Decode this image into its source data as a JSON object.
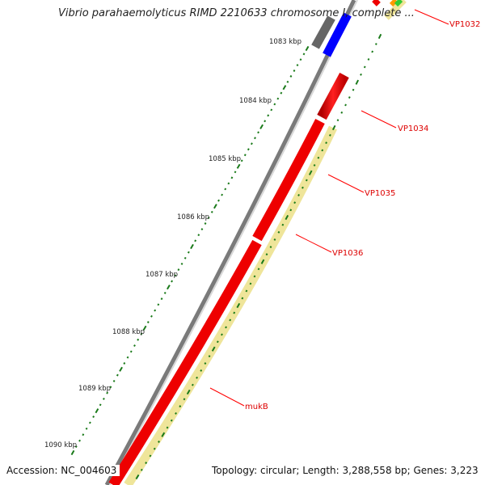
{
  "title": "Vibrio parahaemolyticus RIMD 2210633 chromosome I, complete ...",
  "accession": "Accession: NC_004603",
  "topology": "Topology: circular; Length: 3,288,558 bp; Genes: 3,223",
  "scale_labels": [
    "1083 kbp",
    "1084 kbp",
    "1085 kbp",
    "1086 kbp",
    "1087 kbp",
    "1088 kbp",
    "1089 kbp",
    "1090 kbp"
  ],
  "gene_labels": [
    "VP1032",
    "VP1034",
    "VP1035",
    "VP1036",
    "mukB"
  ],
  "colors": {
    "gene": "#ff0000",
    "label": "#dd0000",
    "backbone": "#777777",
    "other_strand_feature": "#f0e8a0",
    "tick": "#1a7a1a",
    "blue_gene": "#0000ff",
    "grey_gene": "#666666"
  }
}
